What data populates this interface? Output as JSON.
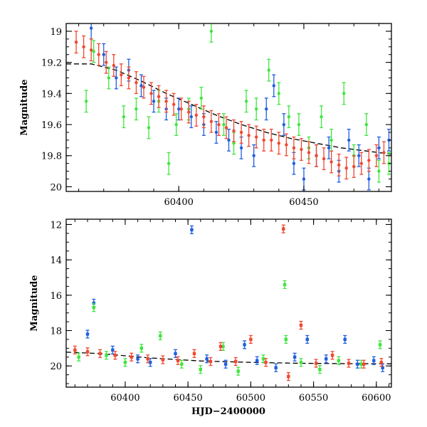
{
  "chart_data": [
    {
      "type": "scatter",
      "panel": "top",
      "title": "",
      "xlabel": "",
      "ylabel": "Magnitude",
      "xlim": [
        60355,
        60485
      ],
      "ylim": [
        20.03,
        18.95
      ],
      "y_inverted": true,
      "xticks": [
        60400,
        60450
      ],
      "yticks": [
        19,
        19.2,
        19.4,
        19.6,
        19.8,
        20
      ],
      "ytick_labels": [
        "19",
        "19.2",
        "19.4",
        "19.6",
        "19.8",
        "20"
      ],
      "xtick_labels": [
        "60400",
        "60450"
      ],
      "grid": false,
      "legend": "none",
      "colors": {
        "blue": "#1f5fe0",
        "green": "#3ee63e",
        "red": "#f2462e",
        "model": "#000000"
      },
      "model_curve": {
        "style": "dashed",
        "x": [
          60355,
          60365,
          60375,
          60385,
          60395,
          60405,
          60415,
          60425,
          60435,
          60445,
          60455,
          60465,
          60475,
          60485
        ],
        "y": [
          19.21,
          19.21,
          19.25,
          19.32,
          19.4,
          19.47,
          19.54,
          19.6,
          19.65,
          19.69,
          19.72,
          19.75,
          19.77,
          19.79
        ]
      },
      "series": [
        {
          "color": "green",
          "points": [
            [
              60363,
              19.45
            ],
            [
              60366,
              19.13
            ],
            [
              60372,
              19.3
            ],
            [
              60378,
              19.55
            ],
            [
              60383,
              19.5
            ],
            [
              60388,
              19.62
            ],
            [
              60392,
              19.45
            ],
            [
              60396,
              19.85
            ],
            [
              60399,
              19.6
            ],
            [
              60404,
              19.5
            ],
            [
              60409,
              19.43
            ],
            [
              60413,
              19.0
            ],
            [
              60418,
              19.6
            ],
            [
              60422,
              19.72
            ],
            [
              60427,
              19.45
            ],
            [
              60431,
              19.5
            ],
            [
              60436,
              19.25
            ],
            [
              60440,
              19.4
            ],
            [
              60444,
              19.55
            ],
            [
              60448,
              19.6
            ],
            [
              60452,
              19.75
            ],
            [
              60457,
              19.55
            ],
            [
              60461,
              19.7
            ],
            [
              60466,
              19.4
            ],
            [
              60470,
              19.8
            ],
            [
              60475,
              19.6
            ],
            [
              60480,
              19.9
            ],
            [
              60484,
              19.85
            ]
          ]
        },
        {
          "color": "blue",
          "points": [
            [
              60365,
              18.98
            ],
            [
              60370,
              19.15
            ],
            [
              60375,
              19.3
            ],
            [
              60380,
              19.25
            ],
            [
              60385,
              19.35
            ],
            [
              60390,
              19.45
            ],
            [
              60395,
              19.5
            ],
            [
              60400,
              19.5
            ],
            [
              60405,
              19.55
            ],
            [
              60410,
              19.6
            ],
            [
              60415,
              19.65
            ],
            [
              60420,
              19.7
            ],
            [
              60425,
              19.75
            ],
            [
              60430,
              19.8
            ],
            [
              60435,
              19.5
            ],
            [
              60438,
              19.35
            ],
            [
              60442,
              19.6
            ],
            [
              60446,
              19.85
            ],
            [
              60450,
              19.95
            ],
            [
              60455,
              19.8
            ],
            [
              60460,
              19.75
            ],
            [
              60464,
              19.9
            ],
            [
              60468,
              19.7
            ],
            [
              60472,
              19.8
            ],
            [
              60476,
              19.95
            ],
            [
              60480,
              19.75
            ],
            [
              60484,
              19.7
            ]
          ]
        },
        {
          "color": "red",
          "points": [
            [
              60359,
              19.07
            ],
            [
              60362,
              19.1
            ],
            [
              60365,
              19.12
            ],
            [
              60368,
              19.15
            ],
            [
              60371,
              19.2
            ],
            [
              60374,
              19.22
            ],
            [
              60377,
              19.28
            ],
            [
              60380,
              19.3
            ],
            [
              60383,
              19.33
            ],
            [
              60386,
              19.36
            ],
            [
              60389,
              19.4
            ],
            [
              60392,
              19.42
            ],
            [
              60395,
              19.45
            ],
            [
              60398,
              19.47
            ],
            [
              60401,
              19.5
            ],
            [
              60404,
              19.52
            ],
            [
              60407,
              19.54
            ],
            [
              60410,
              19.55
            ],
            [
              60413,
              19.58
            ],
            [
              60416,
              19.6
            ],
            [
              60419,
              19.62
            ],
            [
              60422,
              19.64
            ],
            [
              60425,
              19.65
            ],
            [
              60428,
              19.67
            ],
            [
              60431,
              19.68
            ],
            [
              60434,
              19.7
            ],
            [
              60437,
              19.7
            ],
            [
              60440,
              19.72
            ],
            [
              60443,
              19.73
            ],
            [
              60446,
              19.75
            ],
            [
              60449,
              19.76
            ],
            [
              60452,
              19.78
            ],
            [
              60455,
              19.8
            ],
            [
              60458,
              19.82
            ],
            [
              60461,
              19.84
            ],
            [
              60464,
              19.86
            ],
            [
              60467,
              19.88
            ],
            [
              60470,
              19.87
            ],
            [
              60473,
              19.85
            ],
            [
              60476,
              19.83
            ],
            [
              60479,
              19.8
            ],
            [
              60482,
              19.78
            ]
          ]
        }
      ]
    },
    {
      "type": "scatter",
      "panel": "bottom",
      "title": "",
      "xlabel": "HJD−2400000",
      "ylabel": "Magnitude",
      "xlim": [
        60353,
        60612
      ],
      "ylim": [
        21.2,
        11.7
      ],
      "y_inverted": true,
      "xticks": [
        60400,
        60450,
        60500,
        60550,
        60600
      ],
      "xtick_labels": [
        "60400",
        "60450",
        "60500",
        "60550",
        "60600"
      ],
      "yticks": [
        12,
        14,
        16,
        18,
        20
      ],
      "ytick_labels": [
        "12",
        "14",
        "16",
        "18",
        "20"
      ],
      "grid": false,
      "legend": "none",
      "model_curve": {
        "style": "dashed",
        "x": [
          60353,
          60380,
          60420,
          60460,
          60500,
          60540,
          60580,
          60612
        ],
        "y": [
          19.22,
          19.3,
          19.55,
          19.72,
          19.8,
          19.85,
          19.87,
          19.88
        ]
      },
      "series": [
        {
          "color": "blue",
          "points": [
            [
              60370,
              18.2
            ],
            [
              60375,
              16.45
            ],
            [
              60390,
              19.1
            ],
            [
              60410,
              19.6
            ],
            [
              60420,
              19.8
            ],
            [
              60440,
              19.3
            ],
            [
              60453,
              12.3
            ],
            [
              60465,
              19.6
            ],
            [
              60480,
              19.9
            ],
            [
              60495,
              18.8
            ],
            [
              60505,
              19.7
            ],
            [
              60520,
              20.1
            ],
            [
              60535,
              19.5
            ],
            [
              60545,
              18.5
            ],
            [
              60560,
              19.6
            ],
            [
              60575,
              18.5
            ],
            [
              60585,
              19.9
            ],
            [
              60598,
              19.7
            ],
            [
              60605,
              20.1
            ]
          ]
        },
        {
          "color": "green",
          "points": [
            [
              60363,
              19.5
            ],
            [
              60375,
              16.7
            ],
            [
              60385,
              19.4
            ],
            [
              60400,
              19.8
            ],
            [
              60413,
              19.0
            ],
            [
              60428,
              18.3
            ],
            [
              60445,
              19.9
            ],
            [
              60460,
              20.2
            ],
            [
              60478,
              18.9
            ],
            [
              60490,
              20.3
            ],
            [
              60510,
              19.6
            ],
            [
              60527,
              15.4
            ],
            [
              60528,
              18.5
            ],
            [
              60540,
              19.8
            ],
            [
              60555,
              20.2
            ],
            [
              60570,
              19.7
            ],
            [
              60588,
              19.9
            ],
            [
              60603,
              18.8
            ]
          ]
        },
        {
          "color": "red",
          "points": [
            [
              60360,
              19.1
            ],
            [
              60370,
              19.2
            ],
            [
              60380,
              19.3
            ],
            [
              60392,
              19.4
            ],
            [
              60405,
              19.5
            ],
            [
              60418,
              19.6
            ],
            [
              60430,
              19.65
            ],
            [
              60442,
              19.7
            ],
            [
              60455,
              19.3
            ],
            [
              60468,
              19.75
            ],
            [
              60476,
              18.9
            ],
            [
              60488,
              19.75
            ],
            [
              60500,
              18.5
            ],
            [
              60512,
              19.8
            ],
            [
              60526,
              12.25
            ],
            [
              60530,
              20.6
            ],
            [
              60540,
              17.7
            ],
            [
              60552,
              19.85
            ],
            [
              60565,
              19.4
            ],
            [
              60578,
              19.85
            ],
            [
              60590,
              19.9
            ],
            [
              60604,
              19.8
            ]
          ]
        }
      ]
    }
  ]
}
